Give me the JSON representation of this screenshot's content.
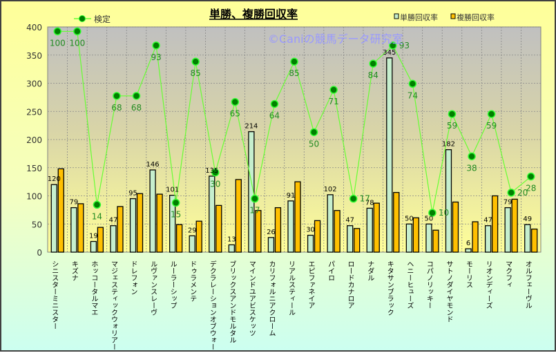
{
  "chart_data": {
    "type": "bar",
    "title": "単勝、複勝回収率",
    "watermark": "©Caniの競馬データ研究室",
    "xlabel": "",
    "ylabel": "",
    "ylim": [
      0,
      400
    ],
    "yticks": [
      0,
      50,
      100,
      150,
      200,
      250,
      300,
      350,
      400
    ],
    "grid": true,
    "legend_position": "top",
    "categories": [
      "シニスターミニスター",
      "キズナ",
      "ホッコータルマエ",
      "マジェスティックウォリアー",
      "ドレフォン",
      "ルヴァンスレーヴ",
      "ルーラーシップ",
      "ドゥラメンテ",
      "デクラレーションオブウォー",
      "ブリックスアンドモルタル",
      "マインドユアビスケッツ",
      "カリフォルニアクローム",
      "リアルスティール",
      "エピファネイア",
      "パイロ",
      "ロードカナロア",
      "ナダル",
      "キタサンブラック",
      "ヘニーヒューズ",
      "コパノリッキー",
      "サトノダイヤモンド",
      "モーリス",
      "リオンディーズ",
      "マクフィ",
      "オルフェーヴル"
    ],
    "series": [
      {
        "name": "単勝回収率",
        "type": "bar",
        "color": "#c6efce",
        "values": [
          120,
          79,
          19,
          47,
          95,
          146,
          101,
          29,
          135,
          13,
          214,
          26,
          91,
          30,
          102,
          47,
          78,
          345,
          50,
          50,
          182,
          6,
          47,
          79,
          49
        ],
        "labels_shown": true
      },
      {
        "name": "複勝回収率",
        "type": "bar",
        "color": "#ffc000",
        "values": [
          148,
          86,
          44,
          81,
          104,
          103,
          49,
          55,
          83,
          129,
          74,
          79,
          125,
          56,
          74,
          42,
          87,
          106,
          61,
          39,
          89,
          54,
          100,
          94,
          41
        ]
      },
      {
        "name": "検定",
        "type": "line",
        "axis": "secondary",
        "color": "#66ff33",
        "marker_color": "#008000",
        "secondary_ylim": [
          -9.5,
          102.2
        ],
        "values": [
          100,
          100,
          14,
          68,
          68,
          93,
          15,
          85,
          30,
          65,
          17,
          64,
          85,
          50,
          71,
          17,
          84,
          93,
          74,
          10,
          59,
          38,
          59,
          20,
          28
        ]
      }
    ]
  }
}
